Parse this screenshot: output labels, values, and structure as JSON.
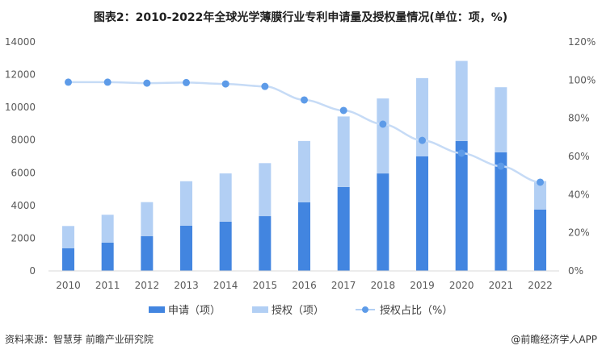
{
  "chart_data": {
    "type": "bar",
    "title": "图表2：2010-2022年全球光学薄膜行业专利申请量及授权量情况(单位：项，%)",
    "categories": [
      "2010",
      "2011",
      "2012",
      "2013",
      "2014",
      "2015",
      "2016",
      "2017",
      "2018",
      "2019",
      "2020",
      "2021",
      "2022"
    ],
    "series": [
      {
        "name": "申请（项）",
        "kind": "bar-stacked",
        "color": "#4285e0",
        "values": [
          1380,
          1725,
          2120,
          2760,
          3010,
          3350,
          4190,
          5130,
          5960,
          7000,
          7940,
          7250,
          3750
        ]
      },
      {
        "name": "授权（项）",
        "kind": "bar-stacked",
        "color": "#b2cff4",
        "values": [
          1366,
          1708,
          2086,
          2724,
          2950,
          3240,
          3754,
          4314,
          4583,
          4788,
          4899,
          3980,
          1744
        ]
      },
      {
        "name": "授权占比（%）",
        "kind": "line",
        "axis": "right",
        "color": "#5d9be8",
        "values": [
          98.9,
          98.9,
          98.4,
          98.7,
          98.0,
          96.7,
          89.6,
          84.1,
          76.9,
          68.4,
          61.7,
          54.9,
          46.5
        ]
      }
    ],
    "left_axis": {
      "ylim": [
        0,
        14000
      ],
      "ticks": [
        "0",
        "2000",
        "4000",
        "6000",
        "8000",
        "10000",
        "12000",
        "14000"
      ]
    },
    "right_axis": {
      "ylim": [
        0,
        120
      ],
      "ticks": [
        "0%",
        "20%",
        "40%",
        "60%",
        "80%",
        "100%",
        "120%"
      ]
    },
    "legend_position": "bottom",
    "grid": false
  },
  "footer": {
    "source": "资料来源：智慧芽 前瞻产业研究院",
    "credit": "@前瞻经济学人APP"
  }
}
